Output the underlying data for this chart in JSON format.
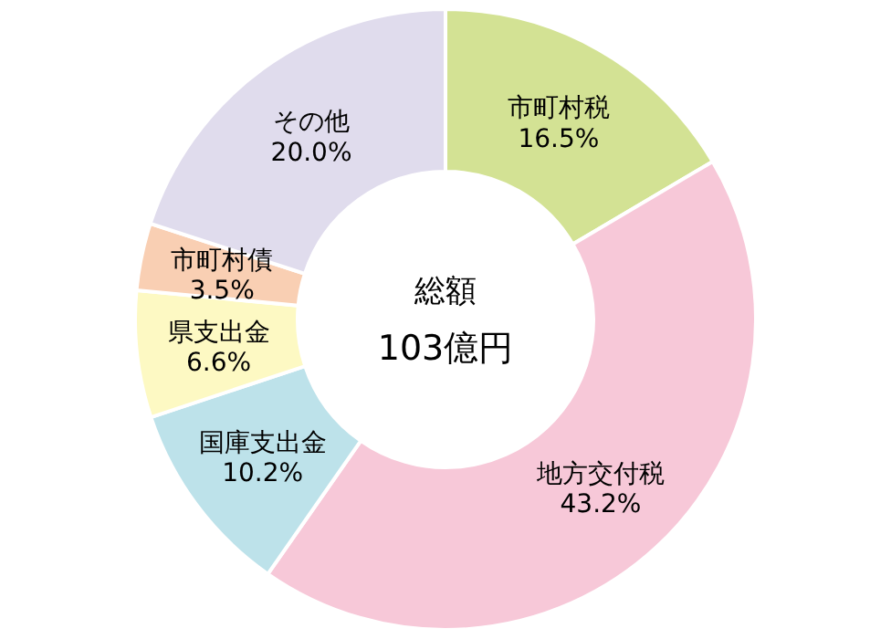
{
  "chart_data": {
    "type": "donut",
    "title": "総額",
    "subtitle": "103億円",
    "categories": [
      "市町村税",
      "地方交付税",
      "国庫支出金",
      "県支出金",
      "市町村債",
      "その他"
    ],
    "values": [
      16.5,
      43.2,
      10.2,
      6.6,
      3.5,
      20.0
    ],
    "value_labels": [
      "16.5%",
      "43.2%",
      "10.2%",
      "6.6%",
      "3.5%",
      "20.0%"
    ],
    "colors": [
      "#d3e294",
      "#f7c8d8",
      "#bde2ea",
      "#fdf9c3",
      "#f9cfb3",
      "#e0dced"
    ]
  }
}
